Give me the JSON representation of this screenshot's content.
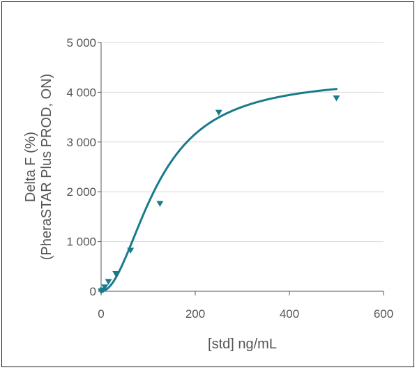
{
  "chart_data": {
    "type": "scatter",
    "xlabel": "[std] ng/mL",
    "ylabel_lines": [
      "Delta F (%)",
      "(PheraSTAR Plus PROD, ON)"
    ],
    "xlim": [
      0,
      600
    ],
    "ylim": [
      0,
      5000
    ],
    "x_ticks": [
      0,
      200,
      400,
      600
    ],
    "y_ticks": [
      0,
      1000,
      2000,
      3000,
      4000,
      5000
    ],
    "x_tick_labels": [
      "0",
      "200",
      "400",
      "600"
    ],
    "y_tick_labels": [
      "0",
      "1 000",
      "2 000",
      "3 000",
      "4 000",
      "5 000"
    ],
    "grid": "horizontal",
    "series": [
      {
        "marker": "triangle-down",
        "color": "#1a7a8c",
        "x": [
          0,
          3.9,
          7.8,
          15.6,
          31.25,
          62.5,
          125,
          250,
          500
        ],
        "y": [
          0,
          20,
          80,
          190,
          350,
          820,
          1760,
          3590,
          3880
        ]
      }
    ],
    "fit": {
      "type": "4PL",
      "color": "#1a7a8c",
      "bottom": 0,
      "top": 4300,
      "ec50": 120,
      "hill": 2.0,
      "x_range": [
        0,
        500
      ]
    }
  }
}
